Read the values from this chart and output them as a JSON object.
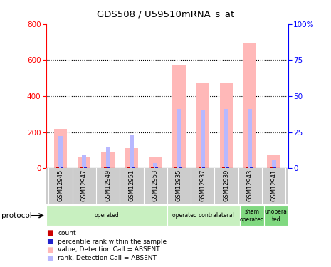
{
  "title": "GDS508 / U59510mRNA_s_at",
  "samples": [
    "GSM12945",
    "GSM12947",
    "GSM12949",
    "GSM12951",
    "GSM12953",
    "GSM12935",
    "GSM12937",
    "GSM12939",
    "GSM12943",
    "GSM12941"
  ],
  "value_absent": [
    220,
    65,
    88,
    110,
    60,
    575,
    470,
    470,
    695,
    75
  ],
  "rank_absent": [
    180,
    75,
    120,
    185,
    30,
    330,
    320,
    330,
    330,
    45
  ],
  "count_height": [
    8,
    5,
    8,
    8,
    3,
    8,
    8,
    8,
    8,
    8
  ],
  "percentile_height": [
    8,
    8,
    8,
    8,
    8,
    8,
    8,
    8,
    8,
    8
  ],
  "protocols": [
    {
      "label": "operated",
      "start": 0,
      "end": 5,
      "color": "#c8f0c0"
    },
    {
      "label": "operated contralateral",
      "start": 5,
      "end": 8,
      "color": "#c8f0c0"
    },
    {
      "label": "sham\noperated",
      "start": 8,
      "end": 9,
      "color": "#80d880"
    },
    {
      "label": "unopera\nted",
      "start": 9,
      "end": 10,
      "color": "#80d880"
    }
  ],
  "left_ylim": [
    0,
    800
  ],
  "right_ylim": [
    0,
    100
  ],
  "left_yticks": [
    0,
    200,
    400,
    600,
    800
  ],
  "right_yticks": [
    0,
    25,
    50,
    75,
    100
  ],
  "right_yticklabels": [
    "0",
    "25",
    "50",
    "75",
    "100%"
  ],
  "color_value_absent": "#ffb8b8",
  "color_rank_absent": "#b8b8ff",
  "color_count": "#cc0000",
  "color_percentile": "#2222cc"
}
